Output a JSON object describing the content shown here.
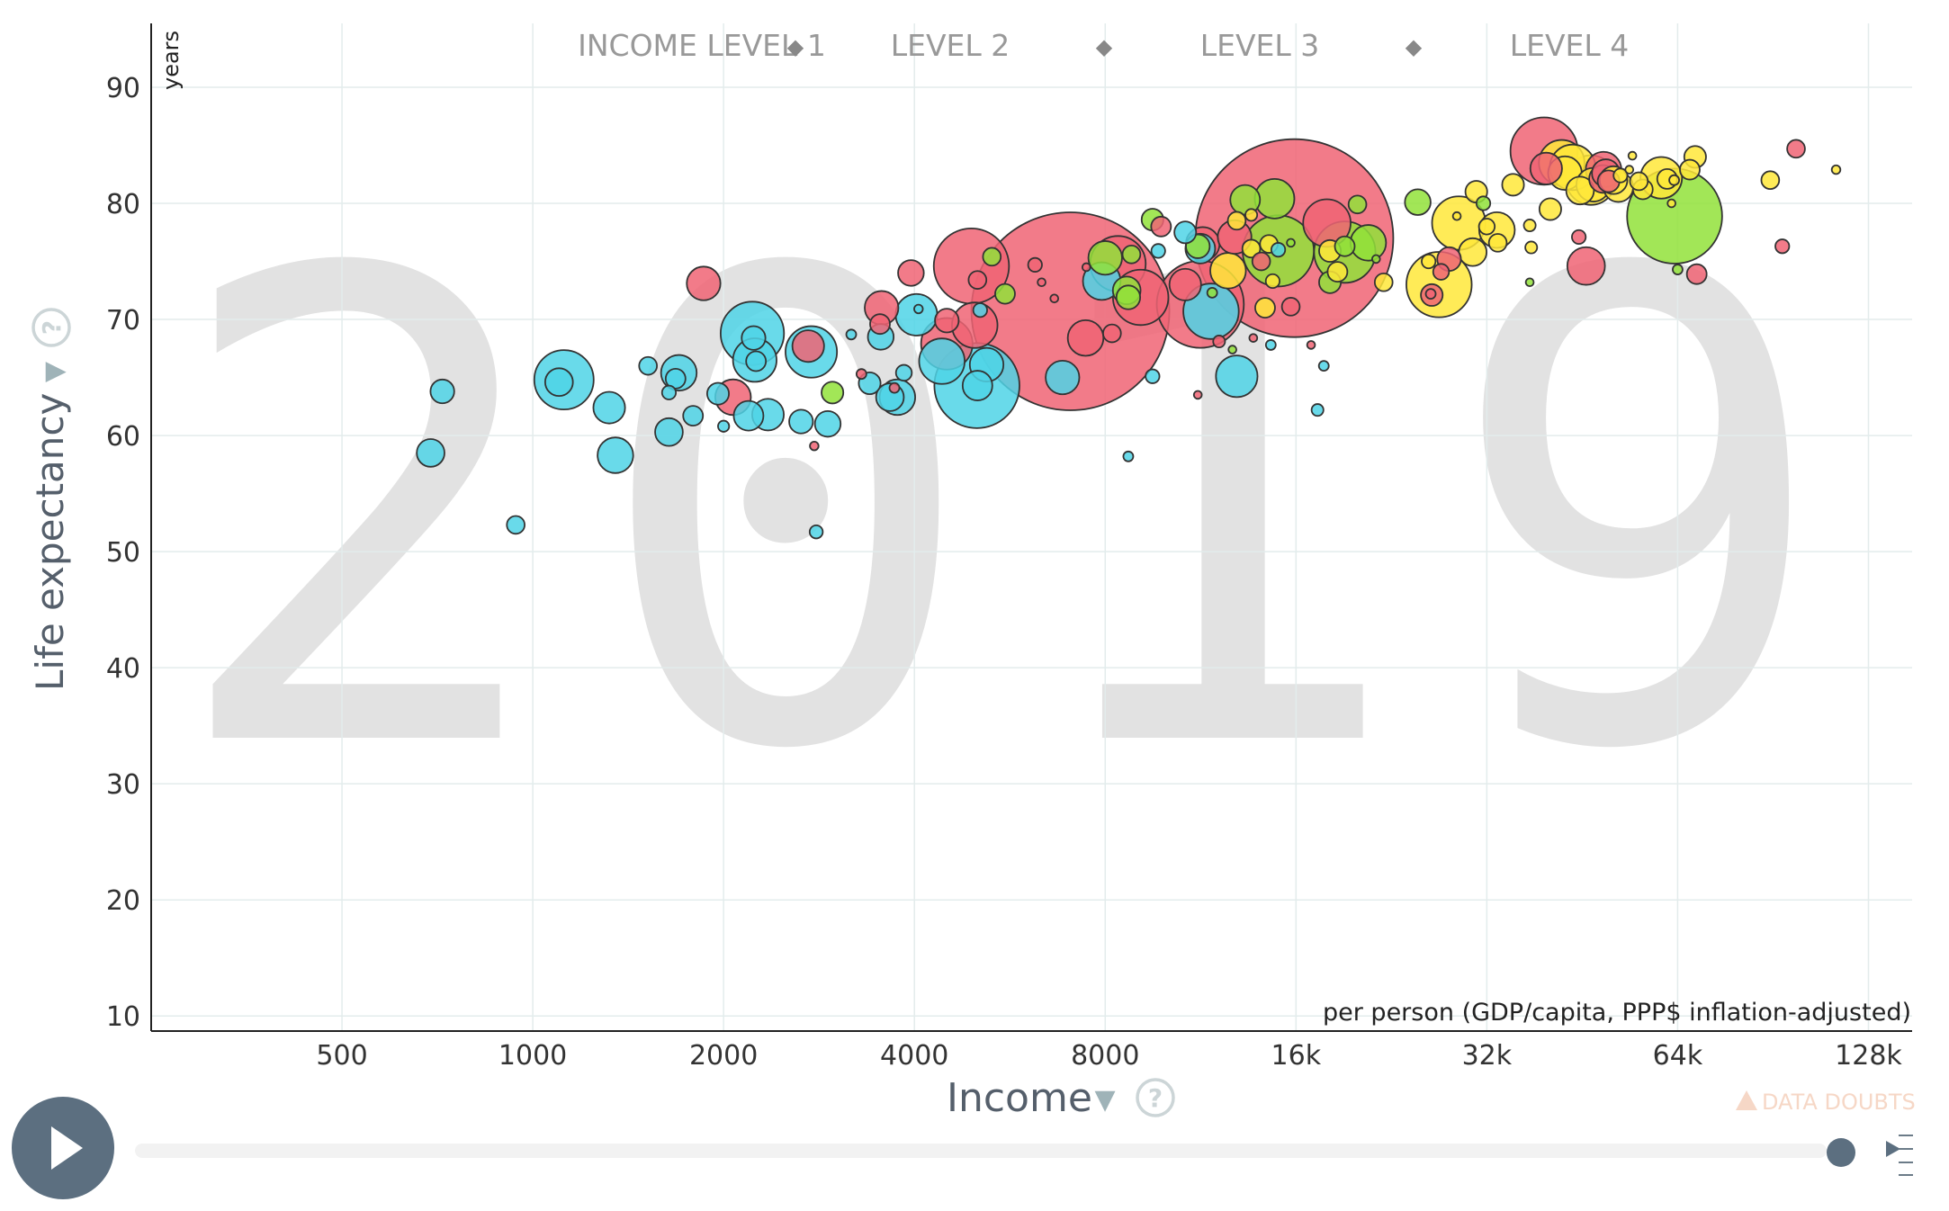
{
  "chart_data": {
    "type": "scatter",
    "year": "2019",
    "xlabel": "Income",
    "x_unit": "per person (GDP/capita, PPP$ inflation-adjusted)",
    "ylabel": "Life expectancy",
    "y_unit": "years",
    "x_scale": "log2",
    "xlim": [
      250,
      150000
    ],
    "ylim": [
      8.7,
      95.5
    ],
    "x_ticks": [
      {
        "value": 500,
        "label": "500"
      },
      {
        "value": 1000,
        "label": "1000"
      },
      {
        "value": 2000,
        "label": "2000"
      },
      {
        "value": 4000,
        "label": "4000"
      },
      {
        "value": 8000,
        "label": "8000"
      },
      {
        "value": 16000,
        "label": "16k"
      },
      {
        "value": 32000,
        "label": "32k"
      },
      {
        "value": 64000,
        "label": "64k"
      },
      {
        "value": 128000,
        "label": "128k"
      }
    ],
    "y_ticks": [
      10,
      20,
      30,
      40,
      50,
      60,
      70,
      80,
      90
    ],
    "legend": [
      {
        "label": "INCOME LEVEL 1",
        "separator": "◆"
      },
      {
        "label": "LEVEL 2",
        "separator": "◆"
      },
      {
        "label": "LEVEL 3",
        "separator": "◆"
      },
      {
        "label": "LEVEL 4",
        "separator": ""
      }
    ],
    "colors": {
      "blue": "#4fd4e6",
      "red": "#f06474",
      "green": "#92e23a",
      "yellow": "#ffe83a"
    },
    "points": [
      {
        "x": 1120,
        "y": 64.8,
        "s": 1.5,
        "c": "blue"
      },
      {
        "x": 1100,
        "y": 64.6,
        "s": 0.7,
        "c": "blue"
      },
      {
        "x": 720,
        "y": 63.8,
        "s": 0.6,
        "c": "blue"
      },
      {
        "x": 690,
        "y": 58.5,
        "s": 0.7,
        "c": "blue"
      },
      {
        "x": 940,
        "y": 52.3,
        "s": 0.45,
        "c": "blue"
      },
      {
        "x": 1320,
        "y": 62.4,
        "s": 0.8,
        "c": "blue"
      },
      {
        "x": 1350,
        "y": 58.3,
        "s": 0.9,
        "c": "blue"
      },
      {
        "x": 1520,
        "y": 66.0,
        "s": 0.45,
        "c": "blue"
      },
      {
        "x": 1700,
        "y": 65.4,
        "s": 0.9,
        "c": "blue"
      },
      {
        "x": 1680,
        "y": 64.9,
        "s": 0.5,
        "c": "blue"
      },
      {
        "x": 1640,
        "y": 63.7,
        "s": 0.35,
        "c": "blue"
      },
      {
        "x": 1640,
        "y": 60.3,
        "s": 0.7,
        "c": "blue"
      },
      {
        "x": 1790,
        "y": 61.7,
        "s": 0.5,
        "c": "blue"
      },
      {
        "x": 1860,
        "y": 73.1,
        "s": 0.85,
        "c": "red"
      },
      {
        "x": 1960,
        "y": 63.6,
        "s": 0.55,
        "c": "blue"
      },
      {
        "x": 2000,
        "y": 60.8,
        "s": 0.28,
        "c": "blue"
      },
      {
        "x": 2070,
        "y": 63.3,
        "s": 0.9,
        "c": "red"
      },
      {
        "x": 2220,
        "y": 68.8,
        "s": 1.6,
        "c": "blue"
      },
      {
        "x": 2230,
        "y": 68.4,
        "s": 0.6,
        "c": "blue"
      },
      {
        "x": 2240,
        "y": 66.5,
        "s": 1.1,
        "c": "blue"
      },
      {
        "x": 2250,
        "y": 66.4,
        "s": 0.5,
        "c": "blue"
      },
      {
        "x": 2190,
        "y": 61.7,
        "s": 0.75,
        "c": "blue"
      },
      {
        "x": 2350,
        "y": 61.8,
        "s": 0.8,
        "c": "blue"
      },
      {
        "x": 2650,
        "y": 61.2,
        "s": 0.6,
        "c": "blue"
      },
      {
        "x": 2750,
        "y": 67.2,
        "s": 1.3,
        "c": "blue"
      },
      {
        "x": 2720,
        "y": 67.7,
        "s": 0.8,
        "c": "red"
      },
      {
        "x": 2780,
        "y": 59.1,
        "s": 0.22,
        "c": "red"
      },
      {
        "x": 2800,
        "y": 51.7,
        "s": 0.33,
        "c": "blue"
      },
      {
        "x": 2920,
        "y": 61.0,
        "s": 0.65,
        "c": "blue"
      },
      {
        "x": 2970,
        "y": 63.7,
        "s": 0.55,
        "c": "green"
      },
      {
        "x": 3180,
        "y": 68.7,
        "s": 0.25,
        "c": "blue"
      },
      {
        "x": 3300,
        "y": 65.3,
        "s": 0.25,
        "c": "red"
      },
      {
        "x": 3400,
        "y": 64.5,
        "s": 0.55,
        "c": "blue"
      },
      {
        "x": 3550,
        "y": 71.0,
        "s": 0.85,
        "c": "red"
      },
      {
        "x": 3530,
        "y": 69.6,
        "s": 0.5,
        "c": "red"
      },
      {
        "x": 3540,
        "y": 68.5,
        "s": 0.65,
        "c": "blue"
      },
      {
        "x": 3660,
        "y": 63.3,
        "s": 0.7,
        "c": "blue"
      },
      {
        "x": 3760,
        "y": 63.3,
        "s": 0.9,
        "c": "blue"
      },
      {
        "x": 3720,
        "y": 64.1,
        "s": 0.25,
        "c": "red"
      },
      {
        "x": 3850,
        "y": 65.4,
        "s": 0.4,
        "c": "blue"
      },
      {
        "x": 3950,
        "y": 74.0,
        "s": 0.65,
        "c": "red"
      },
      {
        "x": 4030,
        "y": 70.4,
        "s": 1.05,
        "c": "blue"
      },
      {
        "x": 4060,
        "y": 70.9,
        "s": 0.22,
        "c": "blue"
      },
      {
        "x": 4420,
        "y": 66.4,
        "s": 1.15,
        "c": "blue"
      },
      {
        "x": 4500,
        "y": 67.9,
        "s": 1.3,
        "c": "red"
      },
      {
        "x": 4500,
        "y": 69.9,
        "s": 0.6,
        "c": "red"
      },
      {
        "x": 4920,
        "y": 74.6,
        "s": 1.9,
        "c": "red"
      },
      {
        "x": 4980,
        "y": 69.5,
        "s": 1.15,
        "c": "red"
      },
      {
        "x": 5020,
        "y": 64.3,
        "s": 2.15,
        "c": "blue"
      },
      {
        "x": 5030,
        "y": 64.3,
        "s": 0.75,
        "c": "blue"
      },
      {
        "x": 5200,
        "y": 66.1,
        "s": 0.85,
        "c": "blue"
      },
      {
        "x": 5030,
        "y": 73.4,
        "s": 0.45,
        "c": "red"
      },
      {
        "x": 5080,
        "y": 70.8,
        "s": 0.35,
        "c": "blue"
      },
      {
        "x": 5300,
        "y": 75.4,
        "s": 0.45,
        "c": "green"
      },
      {
        "x": 5560,
        "y": 72.2,
        "s": 0.5,
        "c": "green"
      },
      {
        "x": 7050,
        "y": 70.7,
        "s": 5.0,
        "c": "red"
      },
      {
        "x": 6200,
        "y": 74.7,
        "s": 0.35,
        "c": "red"
      },
      {
        "x": 6650,
        "y": 71.8,
        "s": 0.2,
        "c": "red"
      },
      {
        "x": 6350,
        "y": 73.2,
        "s": 0.2,
        "c": "red"
      },
      {
        "x": 6850,
        "y": 65.0,
        "s": 0.85,
        "c": "blue"
      },
      {
        "x": 7450,
        "y": 68.4,
        "s": 0.9,
        "c": "red"
      },
      {
        "x": 7470,
        "y": 74.5,
        "s": 0.2,
        "c": "red"
      },
      {
        "x": 7900,
        "y": 73.3,
        "s": 0.95,
        "c": "blue"
      },
      {
        "x": 8380,
        "y": 74.8,
        "s": 1.4,
        "c": "red"
      },
      {
        "x": 8000,
        "y": 75.3,
        "s": 0.85,
        "c": "green"
      },
      {
        "x": 8200,
        "y": 68.8,
        "s": 0.45,
        "c": "red"
      },
      {
        "x": 8650,
        "y": 72.5,
        "s": 0.7,
        "c": "green"
      },
      {
        "x": 8700,
        "y": 71.9,
        "s": 0.6,
        "c": "green"
      },
      {
        "x": 8800,
        "y": 75.6,
        "s": 0.45,
        "c": "green"
      },
      {
        "x": 9100,
        "y": 71.9,
        "s": 1.4,
        "c": "red"
      },
      {
        "x": 8700,
        "y": 58.2,
        "s": 0.25,
        "c": "blue"
      },
      {
        "x": 9500,
        "y": 65.1,
        "s": 0.35,
        "c": "blue"
      },
      {
        "x": 9500,
        "y": 78.6,
        "s": 0.55,
        "c": "green"
      },
      {
        "x": 9800,
        "y": 78.0,
        "s": 0.5,
        "c": "red"
      },
      {
        "x": 9700,
        "y": 75.9,
        "s": 0.35,
        "c": "blue"
      },
      {
        "x": 10700,
        "y": 73.0,
        "s": 0.8,
        "c": "red"
      },
      {
        "x": 10700,
        "y": 77.5,
        "s": 0.55,
        "c": "blue"
      },
      {
        "x": 11300,
        "y": 71.3,
        "s": 2.2,
        "c": "red"
      },
      {
        "x": 11400,
        "y": 76.5,
        "s": 0.85,
        "c": "red"
      },
      {
        "x": 11300,
        "y": 76.1,
        "s": 0.75,
        "c": "blue"
      },
      {
        "x": 11200,
        "y": 76.3,
        "s": 0.6,
        "c": "green"
      },
      {
        "x": 11800,
        "y": 72.3,
        "s": 0.25,
        "c": "green"
      },
      {
        "x": 11200,
        "y": 63.5,
        "s": 0.2,
        "c": "red"
      },
      {
        "x": 11750,
        "y": 70.7,
        "s": 1.4,
        "c": "blue"
      },
      {
        "x": 12100,
        "y": 68.1,
        "s": 0.3,
        "c": "red"
      },
      {
        "x": 12900,
        "y": 65.1,
        "s": 1.05,
        "c": "blue"
      },
      {
        "x": 12700,
        "y": 67.4,
        "s": 0.2,
        "c": "green"
      },
      {
        "x": 12500,
        "y": 74.2,
        "s": 0.9,
        "c": "yellow"
      },
      {
        "x": 12800,
        "y": 77.1,
        "s": 0.85,
        "c": "red"
      },
      {
        "x": 12900,
        "y": 78.5,
        "s": 0.45,
        "c": "yellow"
      },
      {
        "x": 13300,
        "y": 80.3,
        "s": 0.75,
        "c": "green"
      },
      {
        "x": 13600,
        "y": 76.1,
        "s": 0.45,
        "c": "yellow"
      },
      {
        "x": 13600,
        "y": 79.0,
        "s": 0.3,
        "c": "yellow"
      },
      {
        "x": 13700,
        "y": 68.4,
        "s": 0.2,
        "c": "red"
      },
      {
        "x": 14100,
        "y": 75.0,
        "s": 0.45,
        "c": "red"
      },
      {
        "x": 14300,
        "y": 71.0,
        "s": 0.5,
        "c": "yellow"
      },
      {
        "x": 14500,
        "y": 76.5,
        "s": 0.45,
        "c": "yellow"
      },
      {
        "x": 15000,
        "y": 75.9,
        "s": 1.8,
        "c": "green"
      },
      {
        "x": 14800,
        "y": 80.4,
        "s": 1.0,
        "c": "green"
      },
      {
        "x": 15000,
        "y": 76.0,
        "s": 0.35,
        "c": "blue"
      },
      {
        "x": 14700,
        "y": 73.3,
        "s": 0.35,
        "c": "yellow"
      },
      {
        "x": 14600,
        "y": 67.8,
        "s": 0.25,
        "c": "blue"
      },
      {
        "x": 15900,
        "y": 77.0,
        "s": 5.0,
        "c": "red"
      },
      {
        "x": 15700,
        "y": 71.1,
        "s": 0.45,
        "c": "red"
      },
      {
        "x": 15700,
        "y": 76.6,
        "s": 0.2,
        "c": "green"
      },
      {
        "x": 16900,
        "y": 67.8,
        "s": 0.2,
        "c": "red"
      },
      {
        "x": 17300,
        "y": 62.2,
        "s": 0.3,
        "c": "blue"
      },
      {
        "x": 17900,
        "y": 78.3,
        "s": 1.2,
        "c": "red"
      },
      {
        "x": 17700,
        "y": 66.0,
        "s": 0.25,
        "c": "blue"
      },
      {
        "x": 18100,
        "y": 73.2,
        "s": 0.55,
        "c": "green"
      },
      {
        "x": 18100,
        "y": 75.9,
        "s": 0.55,
        "c": "yellow"
      },
      {
        "x": 18600,
        "y": 74.1,
        "s": 0.5,
        "c": "yellow"
      },
      {
        "x": 19100,
        "y": 75.8,
        "s": 1.55,
        "c": "green"
      },
      {
        "x": 19100,
        "y": 76.3,
        "s": 0.5,
        "c": "green"
      },
      {
        "x": 20000,
        "y": 79.9,
        "s": 0.45,
        "c": "green"
      },
      {
        "x": 20800,
        "y": 76.6,
        "s": 0.9,
        "c": "green"
      },
      {
        "x": 21400,
        "y": 75.2,
        "s": 0.2,
        "c": "green"
      },
      {
        "x": 22000,
        "y": 73.2,
        "s": 0.45,
        "c": "yellow"
      },
      {
        "x": 24900,
        "y": 80.1,
        "s": 0.65,
        "c": "green"
      },
      {
        "x": 26900,
        "y": 73.0,
        "s": 1.65,
        "c": "yellow"
      },
      {
        "x": 26200,
        "y": 72.1,
        "s": 0.55,
        "c": "red"
      },
      {
        "x": 26100,
        "y": 72.2,
        "s": 0.25,
        "c": "red"
      },
      {
        "x": 25900,
        "y": 75.0,
        "s": 0.35,
        "c": "yellow"
      },
      {
        "x": 27900,
        "y": 75.2,
        "s": 0.6,
        "c": "red"
      },
      {
        "x": 27100,
        "y": 74.1,
        "s": 0.4,
        "c": "red"
      },
      {
        "x": 28900,
        "y": 78.3,
        "s": 1.35,
        "c": "yellow"
      },
      {
        "x": 28700,
        "y": 78.9,
        "s": 0.2,
        "c": "yellow"
      },
      {
        "x": 30400,
        "y": 75.8,
        "s": 0.7,
        "c": "yellow"
      },
      {
        "x": 30800,
        "y": 81.0,
        "s": 0.55,
        "c": "yellow"
      },
      {
        "x": 31600,
        "y": 80.0,
        "s": 0.35,
        "c": "green"
      },
      {
        "x": 32000,
        "y": 78.0,
        "s": 0.4,
        "c": "yellow"
      },
      {
        "x": 33200,
        "y": 77.7,
        "s": 0.9,
        "c": "yellow"
      },
      {
        "x": 33300,
        "y": 76.6,
        "s": 0.45,
        "c": "yellow"
      },
      {
        "x": 35200,
        "y": 81.6,
        "s": 0.55,
        "c": "yellow"
      },
      {
        "x": 37400,
        "y": 78.1,
        "s": 0.3,
        "c": "yellow"
      },
      {
        "x": 37400,
        "y": 73.2,
        "s": 0.2,
        "c": "green"
      },
      {
        "x": 37600,
        "y": 76.2,
        "s": 0.3,
        "c": "yellow"
      },
      {
        "x": 39400,
        "y": 84.5,
        "s": 1.7,
        "c": "red"
      },
      {
        "x": 39700,
        "y": 83.0,
        "s": 0.8,
        "c": "red"
      },
      {
        "x": 40300,
        "y": 79.5,
        "s": 0.55,
        "c": "yellow"
      },
      {
        "x": 42000,
        "y": 83.5,
        "s": 1.15,
        "c": "yellow"
      },
      {
        "x": 42500,
        "y": 82.6,
        "s": 0.85,
        "c": "yellow"
      },
      {
        "x": 43700,
        "y": 83.1,
        "s": 1.15,
        "c": "yellow"
      },
      {
        "x": 44700,
        "y": 77.1,
        "s": 0.35,
        "c": "red"
      },
      {
        "x": 44900,
        "y": 81.1,
        "s": 0.7,
        "c": "yellow"
      },
      {
        "x": 45900,
        "y": 74.6,
        "s": 0.95,
        "c": "red"
      },
      {
        "x": 46700,
        "y": 82.0,
        "s": 1.25,
        "c": "yellow"
      },
      {
        "x": 47100,
        "y": 81.6,
        "s": 0.85,
        "c": "yellow"
      },
      {
        "x": 48800,
        "y": 82.1,
        "s": 0.7,
        "c": "red"
      },
      {
        "x": 48900,
        "y": 82.9,
        "s": 0.9,
        "c": "red"
      },
      {
        "x": 49300,
        "y": 82.6,
        "s": 0.7,
        "c": "red"
      },
      {
        "x": 49800,
        "y": 81.9,
        "s": 0.55,
        "c": "red"
      },
      {
        "x": 50700,
        "y": 82.0,
        "s": 0.7,
        "c": "yellow"
      },
      {
        "x": 51600,
        "y": 81.4,
        "s": 0.75,
        "c": "yellow"
      },
      {
        "x": 52000,
        "y": 82.4,
        "s": 0.35,
        "c": "yellow"
      },
      {
        "x": 53700,
        "y": 82.9,
        "s": 0.2,
        "c": "yellow"
      },
      {
        "x": 54300,
        "y": 84.1,
        "s": 0.2,
        "c": "yellow"
      },
      {
        "x": 55600,
        "y": 81.9,
        "s": 0.45,
        "c": "yellow"
      },
      {
        "x": 56400,
        "y": 81.2,
        "s": 0.5,
        "c": "yellow"
      },
      {
        "x": 60300,
        "y": 82.2,
        "s": 1.05,
        "c": "yellow"
      },
      {
        "x": 61600,
        "y": 82.1,
        "s": 0.5,
        "c": "yellow"
      },
      {
        "x": 63200,
        "y": 82.0,
        "s": 0.25,
        "c": "yellow"
      },
      {
        "x": 63300,
        "y": 78.9,
        "s": 2.4,
        "c": "green"
      },
      {
        "x": 62600,
        "y": 80.0,
        "s": 0.2,
        "c": "yellow"
      },
      {
        "x": 64000,
        "y": 74.3,
        "s": 0.25,
        "c": "green"
      },
      {
        "x": 66900,
        "y": 82.9,
        "s": 0.5,
        "c": "yellow"
      },
      {
        "x": 68600,
        "y": 73.9,
        "s": 0.5,
        "c": "red"
      },
      {
        "x": 68200,
        "y": 84.0,
        "s": 0.55,
        "c": "yellow"
      },
      {
        "x": 89600,
        "y": 82.0,
        "s": 0.45,
        "c": "yellow"
      },
      {
        "x": 93600,
        "y": 76.3,
        "s": 0.35,
        "c": "red"
      },
      {
        "x": 98400,
        "y": 84.7,
        "s": 0.45,
        "c": "red"
      },
      {
        "x": 113800,
        "y": 82.9,
        "s": 0.22,
        "c": "yellow"
      }
    ]
  },
  "controls": {
    "play_icon": "play-icon",
    "data_doubts_label": "DATA DOUBTS",
    "help_glyph": "?",
    "dropdown_glyph": "▼"
  }
}
